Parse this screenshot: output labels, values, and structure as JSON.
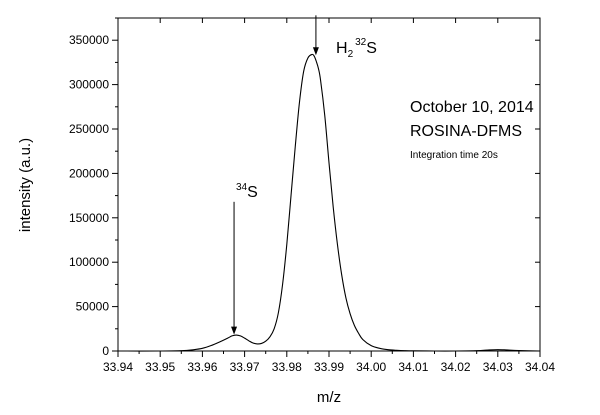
{
  "chart_data": {
    "type": "line",
    "title": "",
    "xlabel": "m/z",
    "ylabel": "intensity (a.u.)",
    "xlim": [
      33.94,
      34.04
    ],
    "ylim": [
      0,
      375000
    ],
    "x_ticks": [
      "33.94",
      "33.95",
      "33.96",
      "33.97",
      "33.98",
      "33.99",
      "34.00",
      "34.01",
      "34.02",
      "34.03",
      "34.04"
    ],
    "y_ticks": [
      "0",
      "50000",
      "100000",
      "150000",
      "200000",
      "250000",
      "300000",
      "350000"
    ],
    "x_tick_values": [
      33.94,
      33.95,
      33.96,
      33.97,
      33.98,
      33.99,
      34.0,
      34.01,
      34.02,
      34.03,
      34.04
    ],
    "y_tick_values": [
      0,
      50000,
      100000,
      150000,
      200000,
      250000,
      300000,
      350000
    ],
    "grid": false,
    "series": [
      {
        "x": [
          33.94,
          33.95,
          33.955,
          33.958,
          33.96,
          33.962,
          33.964,
          33.966,
          33.967,
          33.968,
          33.969,
          33.97,
          33.971,
          33.972,
          33.973,
          33.974,
          33.975,
          33.976,
          33.977,
          33.978,
          33.979,
          33.98,
          33.981,
          33.982,
          33.983,
          33.984,
          33.985,
          33.986,
          33.9865,
          33.987,
          33.9875,
          33.988,
          33.989,
          33.99,
          33.991,
          33.992,
          33.993,
          33.994,
          33.995,
          33.996,
          33.997,
          33.998,
          34.0,
          34.002,
          34.004,
          34.006,
          34.008,
          34.01,
          34.015,
          34.02,
          34.025,
          34.028,
          34.03,
          34.032,
          34.035,
          34.04
        ],
        "y": [
          0,
          0,
          300,
          1500,
          3000,
          6000,
          10000,
          14500,
          17000,
          18000,
          17000,
          14500,
          11500,
          9000,
          8000,
          8500,
          11000,
          16000,
          25000,
          43000,
          75000,
          120000,
          175000,
          230000,
          280000,
          315000,
          330000,
          334000,
          332000,
          326000,
          318000,
          305000,
          265000,
          212000,
          162000,
          120000,
          86000,
          60000,
          42000,
          29000,
          20000,
          13000,
          6000,
          3000,
          1500,
          800,
          400,
          200,
          0,
          0,
          300,
          1200,
          1500,
          1200,
          500,
          0
        ]
      }
    ],
    "annotations": [
      {
        "label_main": "H",
        "label_sub": "2",
        "label_sup": "32",
        "label_end": "S",
        "arrow_x": 33.9869,
        "arrow_y_top": 378000,
        "arrow_y_tip": 333000
      },
      {
        "label_sup": "34",
        "label_main": "S",
        "arrow_x": 33.9675,
        "arrow_y_top": 168000,
        "arrow_y_tip": 18500
      }
    ],
    "text_lines": [
      "October 10, 2014",
      "ROSINA-DFMS",
      "Integration time 20s"
    ]
  }
}
